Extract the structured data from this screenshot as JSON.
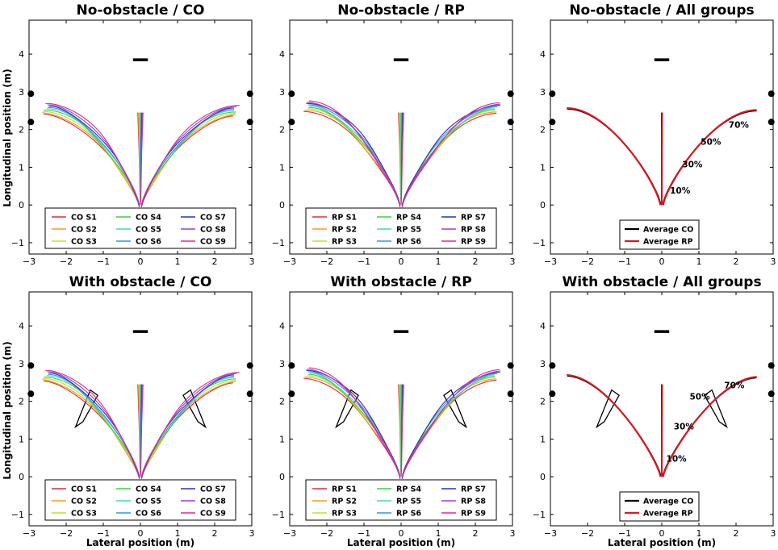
{
  "chart_data": {
    "type": "line",
    "xlabel": "Lateral position (m)",
    "ylabel": "Longitudinal position (m)",
    "xlim": [
      -3,
      3
    ],
    "ylim": [
      -1.3,
      4.9
    ],
    "xticks": [
      -3,
      -2,
      -1,
      0,
      1,
      2,
      3
    ],
    "yticks": [
      -1,
      0,
      1,
      2,
      3,
      4
    ],
    "panels": [
      {
        "title": "No-obstacle / CO",
        "kind": "subjects",
        "obstacle": false,
        "group": "CO"
      },
      {
        "title": "No-obstacle / RP",
        "kind": "subjects",
        "obstacle": false,
        "group": "RP"
      },
      {
        "title": "No-obstacle / All groups",
        "kind": "average",
        "obstacle": false,
        "annotations": [
          {
            "text": "70%",
            "x": 1.8,
            "y": 2.05
          },
          {
            "text": "50%",
            "x": 1.05,
            "y": 1.6
          },
          {
            "text": "30%",
            "x": 0.55,
            "y": 1.0
          },
          {
            "text": "10%",
            "x": 0.22,
            "y": 0.3
          }
        ]
      },
      {
        "title": "With obstacle / CO",
        "kind": "subjects",
        "obstacle": true,
        "group": "CO"
      },
      {
        "title": "With obstacle / RP",
        "kind": "subjects",
        "obstacle": true,
        "group": "RP"
      },
      {
        "title": "With obstacle / All groups",
        "kind": "average",
        "obstacle": true,
        "annotations": [
          {
            "text": "70%",
            "x": 1.68,
            "y": 2.35
          },
          {
            "text": "50%",
            "x": 0.75,
            "y": 2.05
          },
          {
            "text": "30%",
            "x": 0.32,
            "y": 1.25
          },
          {
            "text": "10%",
            "x": 0.12,
            "y": 0.4
          }
        ]
      }
    ],
    "start_marker": {
      "x": [
        -0.2,
        0.2
      ],
      "y": 3.85
    },
    "door_posts": [
      {
        "x": -2.95,
        "y": 2.95
      },
      {
        "x": -2.95,
        "y": 2.2
      },
      {
        "x": 2.95,
        "y": 2.95
      },
      {
        "x": 2.95,
        "y": 2.2
      }
    ],
    "obstacles": [
      [
        [
          -1.75,
          1.32
        ],
        [
          -1.55,
          1.46
        ],
        [
          -1.15,
          2.16
        ],
        [
          -1.35,
          2.3
        ]
      ],
      [
        [
          1.75,
          1.32
        ],
        [
          1.55,
          1.46
        ],
        [
          1.15,
          2.16
        ],
        [
          1.35,
          2.3
        ]
      ]
    ],
    "subjects": {
      "CO": [
        {
          "name": "CO S1",
          "color": "#e6283c"
        },
        {
          "name": "CO S2",
          "color": "#f59b1e"
        },
        {
          "name": "CO S3",
          "color": "#b4e632"
        },
        {
          "name": "CO S4",
          "color": "#3cd23c"
        },
        {
          "name": "CO S5",
          "color": "#3cdcb4"
        },
        {
          "name": "CO S6",
          "color": "#3296e6"
        },
        {
          "name": "CO S7",
          "color": "#2832be"
        },
        {
          "name": "CO S8",
          "color": "#a03cdc"
        },
        {
          "name": "CO S9",
          "color": "#e6288c"
        }
      ],
      "RP": [
        {
          "name": "RP S1",
          "color": "#e6283c"
        },
        {
          "name": "RP S2",
          "color": "#f59b1e"
        },
        {
          "name": "RP S3",
          "color": "#b4e632"
        },
        {
          "name": "RP S4",
          "color": "#3cd23c"
        },
        {
          "name": "RP S5",
          "color": "#3cdcb4"
        },
        {
          "name": "RP S6",
          "color": "#3296e6"
        },
        {
          "name": "RP S7",
          "color": "#2832be"
        },
        {
          "name": "RP S8",
          "color": "#a03cdc"
        },
        {
          "name": "RP S9",
          "color": "#e6288c"
        }
      ]
    },
    "averages": [
      {
        "name": "Average CO",
        "color": "#000000"
      },
      {
        "name": "Average RP",
        "color": "#e6141e"
      }
    ],
    "endpoints": {
      "no_obstacle": {
        "left": [
          -2.55,
          2.55
        ],
        "right": [
          2.55,
          2.5
        ]
      },
      "with_obstacle": {
        "left": [
          -2.55,
          2.68
        ],
        "right": [
          2.55,
          2.63
        ]
      }
    }
  }
}
